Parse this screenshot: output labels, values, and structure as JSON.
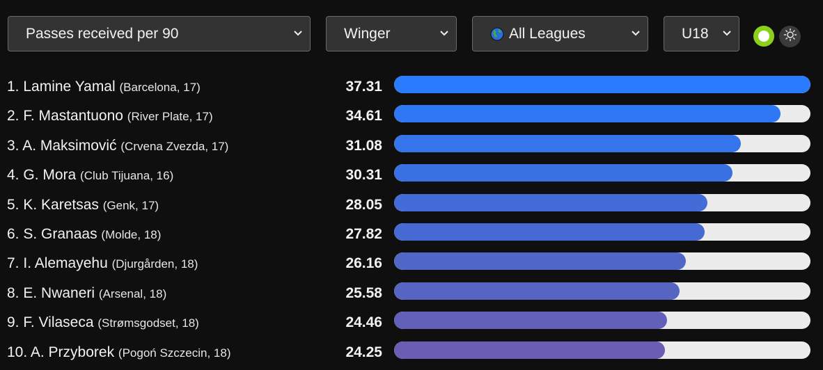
{
  "filters": {
    "metric": "Passes received per 90",
    "position": "Winger",
    "league": "All Leagues",
    "age_group": "U18"
  },
  "icons": {
    "chevron": "chevron-down-icon",
    "league": "globe-icon",
    "theme": "sun-icon"
  },
  "colors": {
    "accent_toggle": "#8bd119",
    "bar_track": "#ececec"
  },
  "chart_data": {
    "type": "bar",
    "orientation": "horizontal",
    "xlim": [
      0,
      37.31
    ],
    "rows": [
      {
        "rank": "1.",
        "name": "Lamine Yamal",
        "meta": "(Barcelona, 17)",
        "value": 37.31,
        "value_label": "37.31",
        "color": "#2a7bff"
      },
      {
        "rank": "2.",
        "name": "F. Mastantuono",
        "meta": "(River Plate, 17)",
        "value": 34.61,
        "value_label": "34.61",
        "color": "#2f78f5"
      },
      {
        "rank": "3.",
        "name": "A. Maksimović",
        "meta": "(Crvena Zvezda, 17)",
        "value": 31.08,
        "value_label": "31.08",
        "color": "#3574ea"
      },
      {
        "rank": "4.",
        "name": "G. Mora",
        "meta": "(Club Tijuana, 16)",
        "value": 30.31,
        "value_label": "30.31",
        "color": "#3a71e2"
      },
      {
        "rank": "5.",
        "name": "K. Karetsas",
        "meta": "(Genk, 17)",
        "value": 28.05,
        "value_label": "28.05",
        "color": "#436cd8"
      },
      {
        "rank": "6.",
        "name": "S. Granaas",
        "meta": "(Molde, 18)",
        "value": 27.82,
        "value_label": "27.82",
        "color": "#4669d3"
      },
      {
        "rank": "7.",
        "name": "I. Alemayehu",
        "meta": "(Djurgården, 18)",
        "value": 26.16,
        "value_label": "26.16",
        "color": "#5167c7"
      },
      {
        "rank": "8.",
        "name": "E. Nwaneri",
        "meta": "(Arsenal, 18)",
        "value": 25.58,
        "value_label": "25.58",
        "color": "#5664c2"
      },
      {
        "rank": "9.",
        "name": "F. Vilaseca",
        "meta": "(Strømsgodset, 18)",
        "value": 24.46,
        "value_label": "24.46",
        "color": "#6260b8"
      },
      {
        "rank": "10.",
        "name": "A. Przyborek",
        "meta": "(Pogoń Szczecin, 18)",
        "value": 24.25,
        "value_label": "24.25",
        "color": "#6a5db3"
      }
    ]
  }
}
